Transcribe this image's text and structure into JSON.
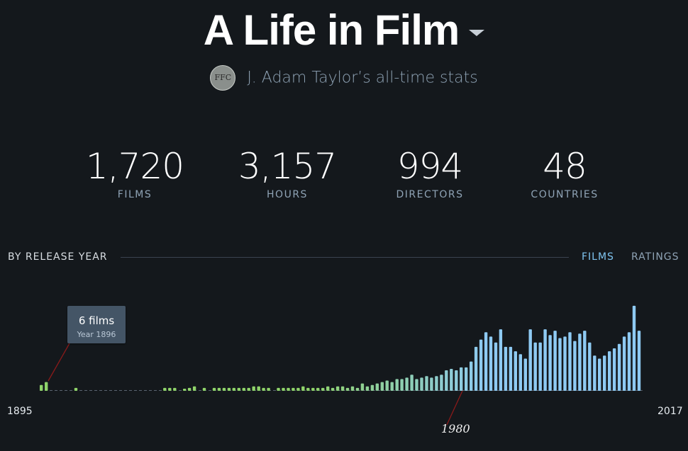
{
  "header": {
    "title": "A Life in Film",
    "caret_icon": "chevron-down-icon",
    "avatar_initials": "FFC",
    "subtitle": "J. Adam Taylor’s all-time stats"
  },
  "stats": [
    {
      "value": "1,720",
      "label": "FILMS"
    },
    {
      "value": "3,157",
      "label": "HOURS"
    },
    {
      "value": "994",
      "label": "DIRECTORS"
    },
    {
      "value": "48",
      "label": "COUNTRIES"
    }
  ],
  "section": {
    "title": "BY RELEASE YEAR",
    "tabs": [
      {
        "label": "FILMS",
        "active": true
      },
      {
        "label": "RATINGS",
        "active": false
      }
    ]
  },
  "tooltip": {
    "main": "6 films",
    "sub": "Year 1896"
  },
  "annotation": "1980",
  "colors": {
    "background": "#14181c",
    "bar_low": "#8fd36a",
    "bar_high": "#8ecaf3",
    "tooltip": "#445566",
    "annotation_line": "#8a1a1a",
    "tab_active": "#7fc4f0"
  },
  "chart_data": {
    "type": "bar",
    "x_start": 1895,
    "x_end": 2017,
    "axis_labels": [
      "1895",
      "2017"
    ],
    "years": [
      1895,
      1896,
      1897,
      1898,
      1899,
      1900,
      1901,
      1902,
      1903,
      1904,
      1905,
      1906,
      1907,
      1908,
      1909,
      1910,
      1911,
      1912,
      1913,
      1914,
      1915,
      1916,
      1917,
      1918,
      1919,
      1920,
      1921,
      1922,
      1923,
      1924,
      1925,
      1926,
      1927,
      1928,
      1929,
      1930,
      1931,
      1932,
      1933,
      1934,
      1935,
      1936,
      1937,
      1938,
      1939,
      1940,
      1941,
      1942,
      1943,
      1944,
      1945,
      1946,
      1947,
      1948,
      1949,
      1950,
      1951,
      1952,
      1953,
      1954,
      1955,
      1956,
      1957,
      1958,
      1959,
      1960,
      1961,
      1962,
      1963,
      1964,
      1965,
      1966,
      1967,
      1968,
      1969,
      1970,
      1971,
      1972,
      1973,
      1974,
      1975,
      1976,
      1977,
      1978,
      1979,
      1980,
      1981,
      1982,
      1983,
      1984,
      1985,
      1986,
      1987,
      1988,
      1989,
      1990,
      1991,
      1992,
      1993,
      1994,
      1995,
      1996,
      1997,
      1998,
      1999,
      2000,
      2001,
      2002,
      2003,
      2004,
      2005,
      2006,
      2007,
      2008,
      2009,
      2010,
      2011,
      2012,
      2013,
      2014,
      2015,
      2016
    ],
    "values": [
      4,
      6,
      0,
      0,
      0,
      0,
      0,
      2,
      0,
      0,
      0,
      0,
      0,
      0,
      0,
      0,
      0,
      0,
      0,
      0,
      0,
      0,
      0,
      0,
      0,
      2,
      2,
      2,
      0,
      1,
      2,
      3,
      0,
      2,
      0,
      2,
      2,
      2,
      2,
      2,
      2,
      2,
      2,
      3,
      3,
      2,
      2,
      0,
      2,
      2,
      2,
      2,
      2,
      3,
      2,
      2,
      2,
      2,
      3,
      2,
      3,
      3,
      2,
      3,
      2,
      5,
      3,
      4,
      5,
      6,
      7,
      6,
      8,
      8,
      9,
      11,
      8,
      9,
      10,
      9,
      10,
      11,
      14,
      15,
      14,
      16,
      16,
      20,
      30,
      35,
      40,
      37,
      33,
      42,
      30,
      30,
      27,
      25,
      22,
      42,
      33,
      33,
      42,
      38,
      41,
      36,
      37,
      40,
      34,
      39,
      41,
      33,
      24,
      22,
      24,
      27,
      29,
      32,
      37,
      40,
      58,
      41
    ]
  }
}
